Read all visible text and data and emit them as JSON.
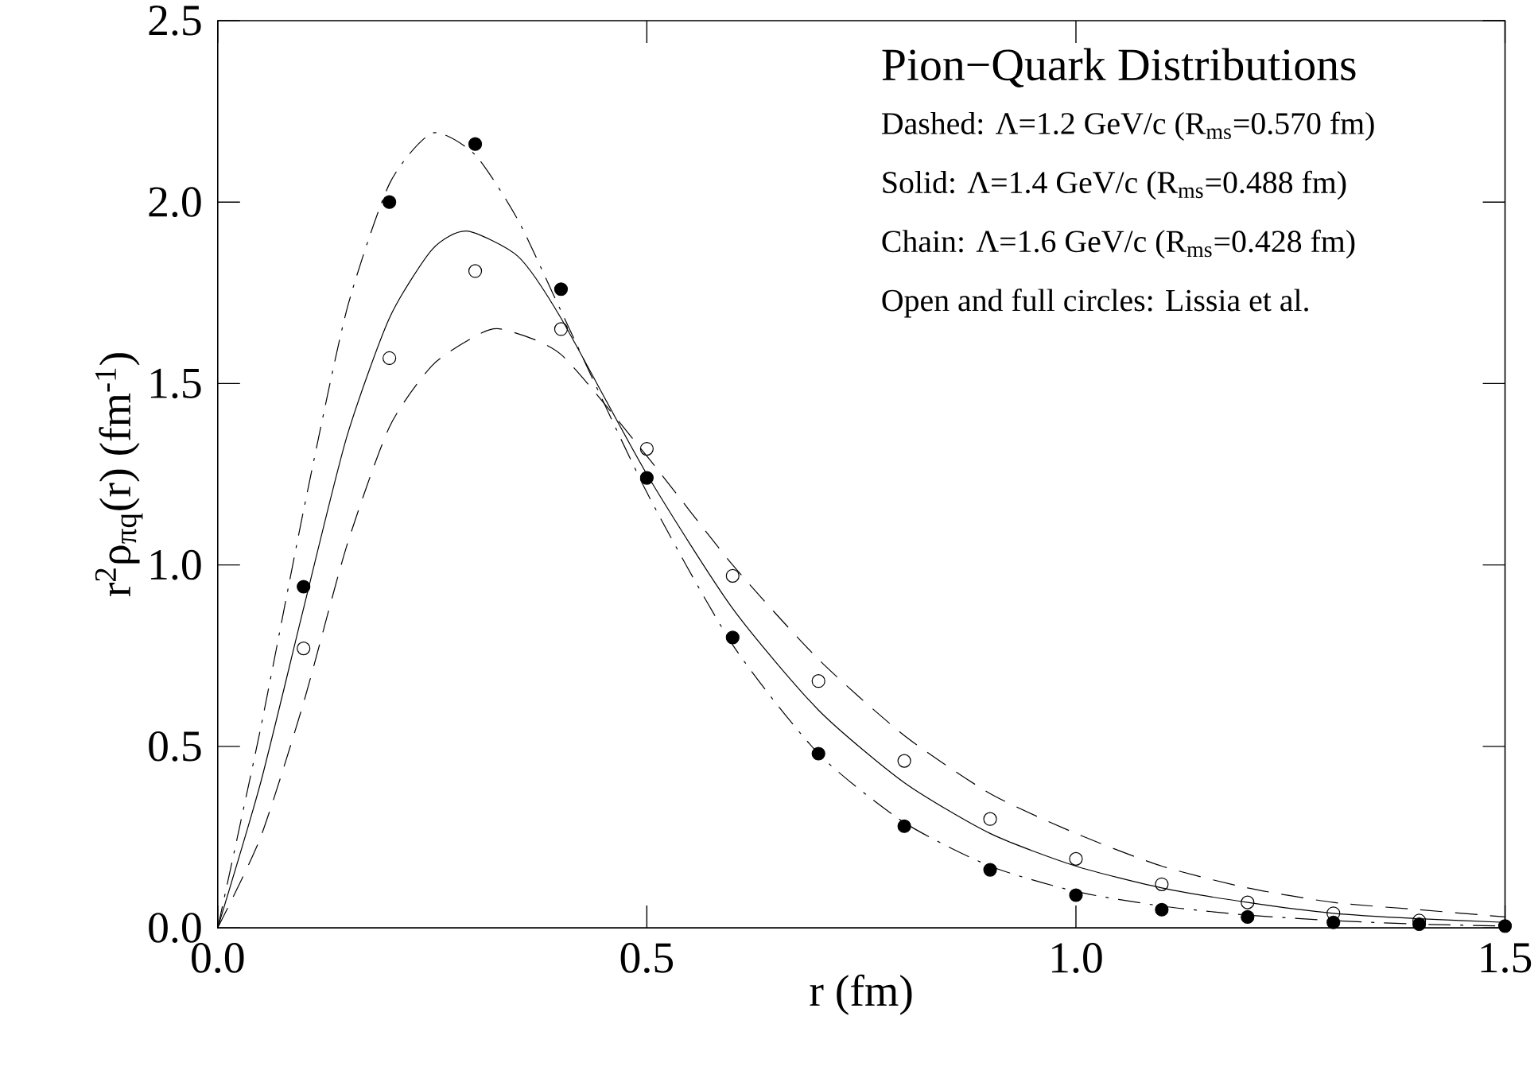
{
  "chart_data": {
    "type": "line",
    "title": "Pion−Quark Distributions",
    "xlabel": "r  (fm)",
    "ylabel": "r$^{2}$ρ$_{πq}$(r)  (fm$^{-1}$)",
    "annotations": [
      "Dashed: Λ=1.2 GeV/c (R$_{ms}$=0.570 fm)",
      "Solid:   Λ=1.4 GeV/c (R$_{ms}$=0.488 fm)",
      "Chain:  Λ=1.6 GeV/c (R$_{ms}$=0.428 fm)",
      "Open and full circles: Lissia et al."
    ],
    "xlim": [
      0,
      1.5
    ],
    "ylim": [
      0,
      2.5
    ],
    "xticks": [
      {
        "value": 0,
        "label": "0.0"
      },
      {
        "value": 0.5,
        "label": "0.5"
      },
      {
        "value": 1.0,
        "label": "1.0"
      },
      {
        "value": 1.5,
        "label": "1.5"
      }
    ],
    "yticks": [
      {
        "value": 0,
        "label": "0.0"
      },
      {
        "value": 0.5,
        "label": "0.5"
      },
      {
        "value": 1.0,
        "label": "1.0"
      },
      {
        "value": 1.5,
        "label": "1.5"
      },
      {
        "value": 2.0,
        "label": "2.0"
      },
      {
        "value": 2.5,
        "label": "2.5"
      }
    ],
    "series": [
      {
        "color": "#000000",
        "line_style": "dashed",
        "marker": "none",
        "x": [
          0,
          0.05,
          0.1,
          0.15,
          0.2,
          0.25,
          0.3,
          0.33,
          0.4,
          0.5,
          0.6,
          0.7,
          0.8,
          0.9,
          1.0,
          1.1,
          1.2,
          1.3,
          1.4,
          1.5
        ],
        "values": [
          0,
          0.25,
          0.62,
          1.05,
          1.38,
          1.55,
          1.63,
          1.65,
          1.58,
          1.3,
          1.0,
          0.74,
          0.53,
          0.37,
          0.26,
          0.17,
          0.11,
          0.07,
          0.05,
          0.03
        ]
      },
      {
        "color": "#000000",
        "line_style": "solid",
        "marker": "none",
        "x": [
          0,
          0.05,
          0.1,
          0.15,
          0.2,
          0.25,
          0.29,
          0.35,
          0.4,
          0.5,
          0.6,
          0.7,
          0.8,
          0.9,
          1.0,
          1.1,
          1.2,
          1.3,
          1.4,
          1.5
        ],
        "values": [
          0,
          0.4,
          0.88,
          1.35,
          1.68,
          1.87,
          1.92,
          1.85,
          1.68,
          1.25,
          0.88,
          0.6,
          0.4,
          0.26,
          0.17,
          0.11,
          0.07,
          0.04,
          0.025,
          0.015
        ]
      },
      {
        "color": "#000000",
        "line_style": "dashdot",
        "marker": "none",
        "x": [
          0,
          0.05,
          0.1,
          0.15,
          0.2,
          0.25,
          0.3,
          0.35,
          0.4,
          0.5,
          0.6,
          0.7,
          0.8,
          0.9,
          1.0,
          1.1,
          1.2,
          1.3,
          1.4,
          1.5
        ],
        "values": [
          0,
          0.55,
          1.15,
          1.7,
          2.05,
          2.19,
          2.13,
          1.95,
          1.7,
          1.2,
          0.78,
          0.48,
          0.29,
          0.17,
          0.1,
          0.06,
          0.035,
          0.02,
          0.01,
          0.005
        ]
      },
      {
        "type": "scatter",
        "color": "#000000",
        "marker": "circle_open",
        "x": [
          0.1,
          0.2,
          0.3,
          0.4,
          0.5,
          0.6,
          0.7,
          0.8,
          0.9,
          1.0,
          1.1,
          1.2,
          1.3,
          1.4
        ],
        "values": [
          0.77,
          1.57,
          1.81,
          1.65,
          1.32,
          0.97,
          0.68,
          0.46,
          0.3,
          0.19,
          0.12,
          0.07,
          0.04,
          0.02
        ]
      },
      {
        "type": "scatter",
        "color": "#000000",
        "marker": "circle",
        "x": [
          0.1,
          0.2,
          0.3,
          0.4,
          0.5,
          0.6,
          0.7,
          0.8,
          0.9,
          1.0,
          1.1,
          1.2,
          1.3,
          1.4,
          1.5
        ],
        "values": [
          0.94,
          2.0,
          2.16,
          1.76,
          1.24,
          0.8,
          0.48,
          0.28,
          0.16,
          0.09,
          0.05,
          0.03,
          0.015,
          0.01,
          0.005
        ]
      }
    ]
  }
}
